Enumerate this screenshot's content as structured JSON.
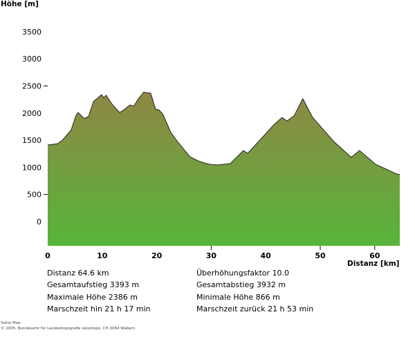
{
  "chart_data": {
    "type": "area",
    "ylabel": "Höhe [m]",
    "xlabel": "Distanz [km]",
    "ylim": [
      -450,
      3700
    ],
    "xlim": [
      0,
      64.6
    ],
    "yticks": [
      0,
      500,
      1000,
      1500,
      2000,
      2500,
      3000,
      3500
    ],
    "yticks_with_marks": [
      500,
      2500
    ],
    "xticks": [
      0,
      10,
      20,
      30,
      40,
      50,
      60
    ],
    "xticks_with_marks": [
      30,
      50,
      60
    ],
    "grid": false,
    "colors": {
      "fill_top": "#8f8745",
      "fill_bottom": "#57b43a",
      "outline": "#222222"
    },
    "x": [
      0,
      1.8,
      2.7,
      4.3,
      5.2,
      5.6,
      6.7,
      7.5,
      8.4,
      9.9,
      10.3,
      10.7,
      11.9,
      13.2,
      14.1,
      15.1,
      15.8,
      16.6,
      17.6,
      18.9,
      19.8,
      20.4,
      21.1,
      22.6,
      24.0,
      26.1,
      27.6,
      29.1,
      29.9,
      31.2,
      33.5,
      35.9,
      36.7,
      41.6,
      43.0,
      43.9,
      45.2,
      46.8,
      48.6,
      52.5,
      55.7,
      57.2,
      60.2,
      64.0,
      64.6
    ],
    "y": [
      1412,
      1437,
      1500,
      1690,
      1960,
      2010,
      1900,
      1940,
      2215,
      2340,
      2280,
      2330,
      2150,
      2010,
      2070,
      2150,
      2130,
      2260,
      2386,
      2365,
      2070,
      2060,
      1985,
      1640,
      1450,
      1195,
      1120,
      1070,
      1055,
      1045,
      1070,
      1310,
      1260,
      1795,
      1920,
      1855,
      1950,
      2265,
      1920,
      1475,
      1185,
      1310,
      1055,
      880,
      866
    ]
  },
  "stats": {
    "distance": "Distanz 64.6 km",
    "ascent": "Gesamtaufstieg  3393 m",
    "max_height": "Maximale Höhe  2386 m",
    "time_forward": "Marschzeit hin  21 h 17 min",
    "exaggeration": "Überhöhungsfaktor 10.0",
    "descent": "Gesamtabstieg  3932 m",
    "min_height": "Minimale Höhe  866 m",
    "time_back": "Marschzeit zurück  21 h 53 min"
  },
  "footer": {
    "line1": "Swiss Map",
    "line2": "© 2005, Bundesamt für Landestopografie swisstopo, CH-3084 Wabern"
  }
}
